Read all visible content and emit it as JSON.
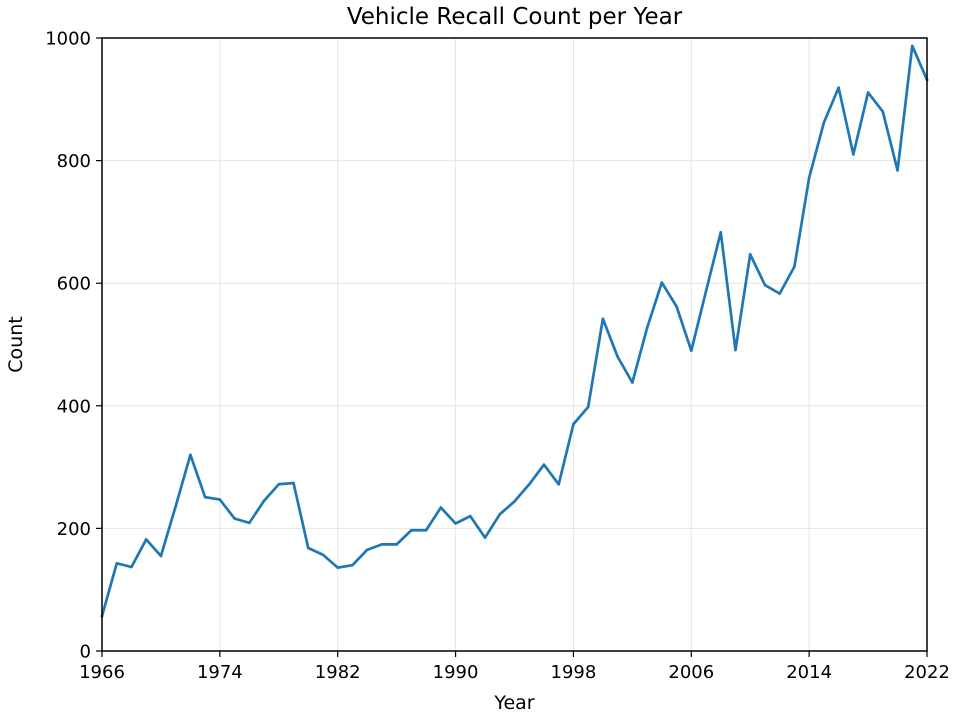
{
  "chart_data": {
    "type": "line",
    "title": "Vehicle Recall Count per Year",
    "xlabel": "Year",
    "ylabel": "Count",
    "xlim": [
      1966,
      2022
    ],
    "ylim": [
      0,
      1000
    ],
    "xticks": [
      1966,
      1974,
      1982,
      1990,
      1998,
      2006,
      2014,
      2022
    ],
    "yticks": [
      0,
      200,
      400,
      600,
      800,
      1000
    ],
    "grid": true,
    "line_color": "#1f77b4",
    "x": [
      1966,
      1967,
      1968,
      1969,
      1970,
      1971,
      1972,
      1973,
      1974,
      1975,
      1976,
      1977,
      1978,
      1979,
      1980,
      1981,
      1982,
      1983,
      1984,
      1985,
      1986,
      1987,
      1988,
      1989,
      1990,
      1991,
      1992,
      1993,
      1994,
      1995,
      1996,
      1997,
      1998,
      1999,
      2000,
      2001,
      2002,
      2003,
      2004,
      2005,
      2006,
      2007,
      2008,
      2009,
      2010,
      2011,
      2012,
      2013,
      2014,
      2015,
      2016,
      2017,
      2018,
      2019,
      2020,
      2021,
      2022
    ],
    "series": [
      {
        "values": [
          57,
          143,
          137,
          182,
          155,
          236,
          320,
          251,
          247,
          216,
          209,
          245,
          272,
          274,
          168,
          157,
          136,
          140,
          165,
          174,
          174,
          197,
          197,
          234,
          208,
          220,
          185,
          223,
          244,
          272,
          304,
          272,
          370,
          398,
          542,
          480,
          438,
          527,
          601,
          562,
          490,
          587,
          683,
          491,
          647,
          597,
          583,
          627,
          772,
          862,
          919,
          810,
          911,
          880,
          784,
          987,
          932
        ]
      }
    ]
  }
}
